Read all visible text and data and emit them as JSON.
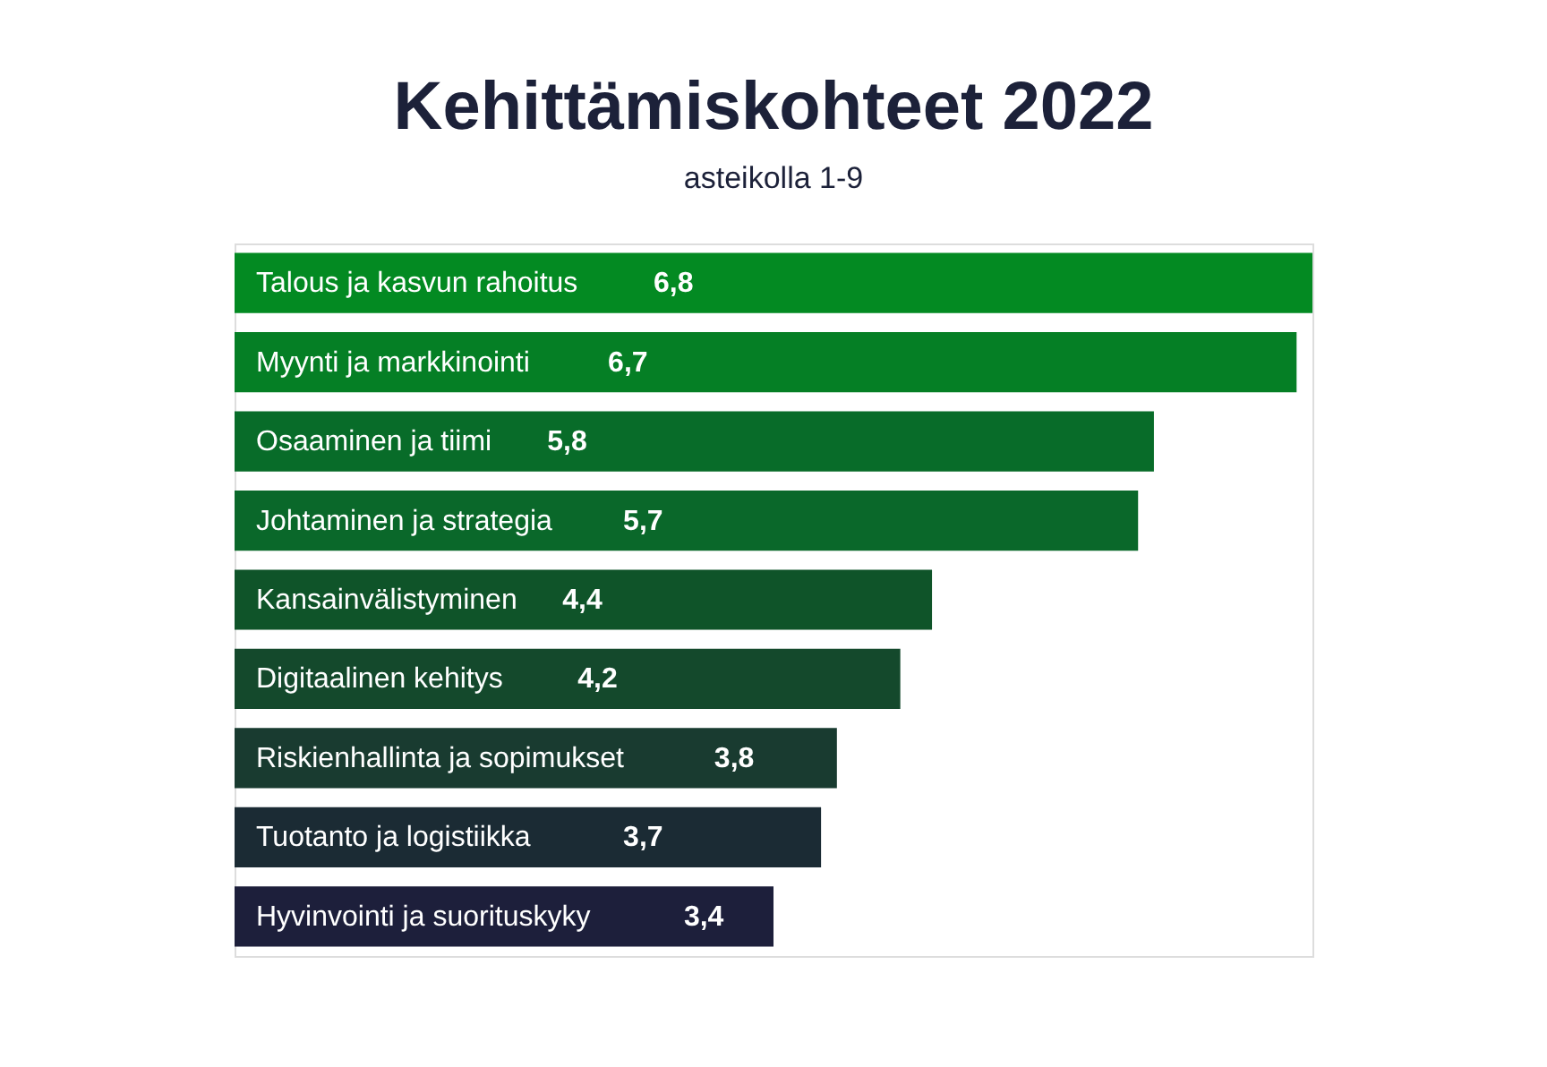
{
  "chart_data": {
    "type": "bar",
    "orientation": "horizontal",
    "title": "Kehittämiskohteet 2022",
    "subtitle": "asteikolla 1-9",
    "categories": [
      "Talous ja kasvun rahoitus",
      "Myynti ja markkinointi",
      "Osaaminen ja tiimi",
      "Johtaminen ja strategia",
      "Kansainvälistyminen",
      "Digitaalinen kehitys",
      "Riskienhallinta ja sopimukset",
      "Tuotanto ja logistiikka",
      "Hyvinvointi ja suorituskyky"
    ],
    "values": [
      6.8,
      6.7,
      5.8,
      5.7,
      4.4,
      4.2,
      3.8,
      3.7,
      3.4
    ],
    "colors": [
      "#038a22",
      "#057f25",
      "#086c29",
      "#0a682a",
      "#0f5429",
      "#14492c",
      "#193b30",
      "#1b2b34",
      "#1d1f3b"
    ],
    "value_labels": [
      "6,8",
      "6,7",
      "5,8",
      "5,7",
      "4,4",
      "4,2",
      "3,8",
      "3,7",
      "3,4"
    ]
  }
}
